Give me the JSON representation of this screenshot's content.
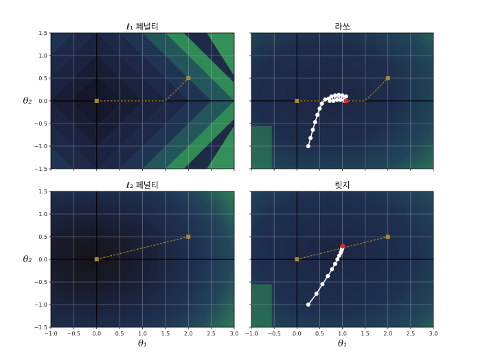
{
  "chart_data": [
    {
      "type": "contour-path",
      "title": "ℓ₁ 페널티",
      "xlabel": "",
      "ylabel": "θ₂",
      "xlim": [
        -1.0,
        3.0
      ],
      "ylim": [
        -1.5,
        1.5
      ],
      "xticks": [
        "−1.0",
        "−0.5",
        "0.0",
        "0.5",
        "1.0",
        "1.5",
        "2.0",
        "2.5",
        "3.0"
      ],
      "yticks": [
        "1.5",
        "1.0",
        "0.5",
        "0.0",
        "−0.5",
        "−1.0",
        "−1.5"
      ],
      "show_xtick_labels": false,
      "show_ytick_labels": true,
      "contour": "l1",
      "reference_path": [
        [
          0.0,
          0.0
        ],
        [
          1.5,
          0.0
        ],
        [
          2.0,
          0.5
        ]
      ],
      "reference_markers": [
        [
          0.0,
          0.0
        ],
        [
          2.0,
          0.5
        ]
      ],
      "path_points": [],
      "end_point": null
    },
    {
      "type": "contour-path",
      "title": "라쏘",
      "xlabel": "",
      "ylabel": "",
      "xlim": [
        -1.0,
        3.0
      ],
      "ylim": [
        -1.5,
        1.5
      ],
      "xticks": [
        "−1.0",
        "−0.5",
        "0.0",
        "0.5",
        "1.0",
        "1.5",
        "2.0",
        "2.5",
        "3.0"
      ],
      "yticks": [
        "1.5",
        "1.0",
        "0.5",
        "0.0",
        "−0.5",
        "−1.0",
        "−1.5"
      ],
      "show_xtick_labels": false,
      "show_ytick_labels": false,
      "contour": "lasso",
      "reference_path": [
        [
          0.0,
          0.0
        ],
        [
          1.5,
          0.0
        ],
        [
          2.0,
          0.5
        ]
      ],
      "reference_markers": [
        [
          0.0,
          0.0
        ],
        [
          2.0,
          0.5
        ]
      ],
      "path_points": [
        [
          0.25,
          -1.0
        ],
        [
          0.3,
          -0.82
        ],
        [
          0.35,
          -0.64
        ],
        [
          0.4,
          -0.47
        ],
        [
          0.45,
          -0.31
        ],
        [
          0.5,
          -0.17
        ],
        [
          0.55,
          -0.06
        ],
        [
          0.62,
          0.03
        ],
        [
          0.7,
          0.05
        ],
        [
          0.72,
          0.0
        ],
        [
          0.76,
          0.1
        ],
        [
          0.8,
          0.0
        ],
        [
          0.84,
          0.12
        ],
        [
          0.88,
          0.02
        ],
        [
          0.92,
          0.13
        ],
        [
          0.96,
          0.02
        ],
        [
          1.0,
          0.12
        ],
        [
          1.04,
          0.02
        ],
        [
          1.08,
          0.1
        ],
        [
          1.05,
          0.0
        ]
      ],
      "end_point": [
        1.08,
        0.0
      ]
    },
    {
      "type": "contour-path",
      "title": "ℓ₂ 페널티",
      "xlabel": "θ₁",
      "ylabel": "θ₂",
      "xlim": [
        -1.0,
        3.0
      ],
      "ylim": [
        -1.5,
        1.5
      ],
      "xticks": [
        "−1.0",
        "−0.5",
        "0.0",
        "0.5",
        "1.0",
        "1.5",
        "2.0",
        "2.5",
        "3.0"
      ],
      "yticks": [
        "1.5",
        "1.0",
        "0.5",
        "0.0",
        "−0.5",
        "−1.0",
        "−1.5"
      ],
      "show_xtick_labels": true,
      "show_ytick_labels": true,
      "contour": "l2",
      "reference_path": [
        [
          0.0,
          0.0
        ],
        [
          2.0,
          0.5
        ]
      ],
      "reference_markers": [
        [
          0.0,
          0.0
        ],
        [
          2.0,
          0.5
        ]
      ],
      "path_points": [],
      "end_point": null
    },
    {
      "type": "contour-path",
      "title": "릿지",
      "xlabel": "θ₁",
      "ylabel": "",
      "xlim": [
        -1.0,
        3.0
      ],
      "ylim": [
        -1.5,
        1.5
      ],
      "xticks": [
        "−1.0",
        "−0.5",
        "0.0",
        "0.5",
        "1.0",
        "1.5",
        "2.0",
        "2.5",
        "3.0"
      ],
      "yticks": [
        "1.5",
        "1.0",
        "0.5",
        "0.0",
        "−0.5",
        "−1.0",
        "−1.5"
      ],
      "show_xtick_labels": true,
      "show_ytick_labels": false,
      "contour": "ridge",
      "reference_path": [
        [
          0.0,
          0.0
        ],
        [
          2.0,
          0.5
        ]
      ],
      "reference_markers": [
        [
          0.0,
          0.0
        ],
        [
          2.0,
          0.5
        ]
      ],
      "path_points": [
        [
          0.25,
          -1.0
        ],
        [
          0.43,
          -0.76
        ],
        [
          0.56,
          -0.55
        ],
        [
          0.68,
          -0.37
        ],
        [
          0.77,
          -0.22
        ],
        [
          0.84,
          -0.1
        ],
        [
          0.89,
          0.0
        ],
        [
          0.93,
          0.08
        ],
        [
          0.96,
          0.14
        ],
        [
          0.98,
          0.19
        ],
        [
          0.99,
          0.22
        ],
        [
          1.0,
          0.25
        ],
        [
          1.0,
          0.27
        ]
      ],
      "end_point": [
        1.01,
        0.29
      ]
    }
  ],
  "colors": {
    "background": "#ffffff",
    "contour_dark": "#15151f",
    "contour_mid": "#1f3350",
    "contour_light": "#2f8a55",
    "grid": "#b9bcc4",
    "axis_line": "#000000",
    "reference_line": "#a8872e",
    "reference_marker": "#a8872e",
    "path": "#ffffff",
    "end_marker": "#e0262b"
  }
}
